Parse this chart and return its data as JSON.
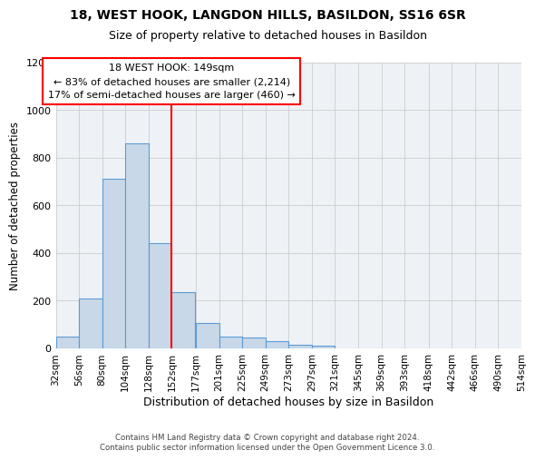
{
  "title1": "18, WEST HOOK, LANGDON HILLS, BASILDON, SS16 6SR",
  "title2": "Size of property relative to detached houses in Basildon",
  "xlabel": "Distribution of detached houses by size in Basildon",
  "ylabel": "Number of detached properties",
  "bin_edges": [
    32,
    56,
    80,
    104,
    128,
    152,
    177,
    201,
    225,
    249,
    273,
    297,
    321,
    345,
    369,
    393,
    418,
    442,
    466,
    490,
    514
  ],
  "bin_labels": [
    "32sqm",
    "56sqm",
    "80sqm",
    "104sqm",
    "128sqm",
    "152sqm",
    "177sqm",
    "201sqm",
    "225sqm",
    "249sqm",
    "273sqm",
    "297sqm",
    "321sqm",
    "345sqm",
    "369sqm",
    "393sqm",
    "418sqm",
    "442sqm",
    "466sqm",
    "490sqm",
    "514sqm"
  ],
  "counts": [
    50,
    210,
    710,
    860,
    440,
    235,
    105,
    50,
    45,
    30,
    15,
    10,
    0,
    0,
    0,
    0,
    0,
    0,
    0,
    0
  ],
  "bar_color": "#c8d8e8",
  "bar_edge_color": "#5b9bd5",
  "red_line_x": 152,
  "ylim": [
    0,
    1200
  ],
  "yticks": [
    0,
    200,
    400,
    600,
    800,
    1000,
    1200
  ],
  "ann_line1": "18 WEST HOOK: 149sqm",
  "ann_line2": "← 83% of detached houses are smaller (2,214)",
  "ann_line3": "17% of semi-detached houses are larger (460) →",
  "footer": "Contains HM Land Registry data © Crown copyright and database right 2024.\nContains public sector information licensed under the Open Government Licence 3.0.",
  "bg_color": "#eef2f7",
  "title1_fontsize": 10,
  "title2_fontsize": 9
}
